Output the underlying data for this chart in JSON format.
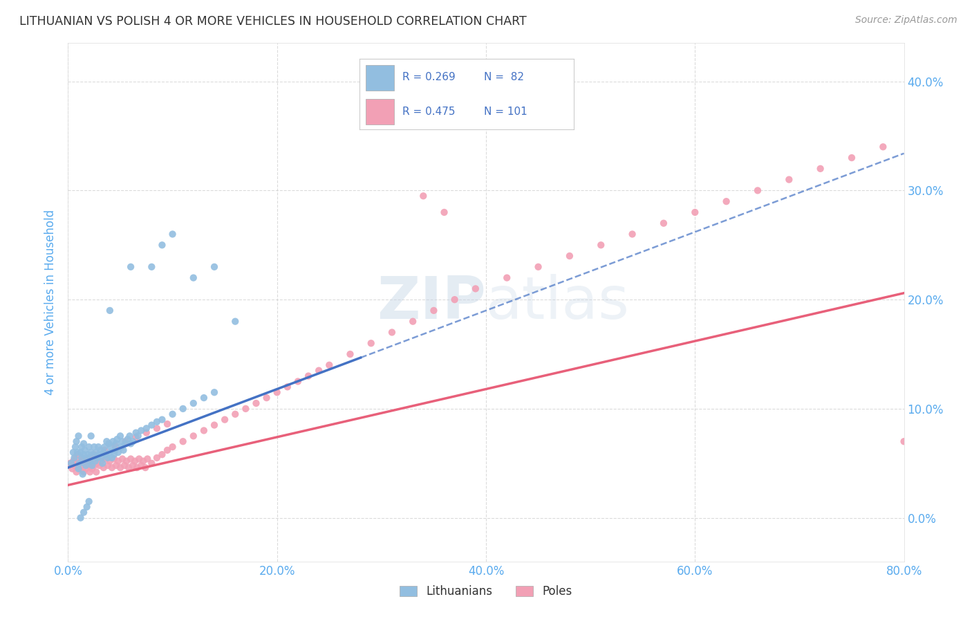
{
  "title": "LITHUANIAN VS POLISH 4 OR MORE VEHICLES IN HOUSEHOLD CORRELATION CHART",
  "source_text": "Source: ZipAtlas.com",
  "ylabel": "4 or more Vehicles in Household",
  "xmin": 0.0,
  "xmax": 0.8,
  "ymin": -0.04,
  "ymax": 0.435,
  "lithuanian_color": "#92BEE0",
  "polish_color": "#F2A0B5",
  "lit_line_color": "#4472C4",
  "pol_line_color": "#E8607A",
  "R_lithuanian": 0.269,
  "N_lithuanian": 82,
  "R_polish": 0.475,
  "N_polish": 101,
  "background_color": "#ffffff",
  "grid_color": "#cccccc",
  "title_color": "#333333",
  "axis_label_color": "#5AABEE",
  "tick_label_color": "#5AABEE",
  "watermark_color": "#c8d8e8",
  "lit_x": [
    0.003,
    0.005,
    0.006,
    0.007,
    0.008,
    0.009,
    0.01,
    0.01,
    0.011,
    0.012,
    0.013,
    0.013,
    0.014,
    0.015,
    0.015,
    0.016,
    0.017,
    0.018,
    0.019,
    0.02,
    0.021,
    0.022,
    0.022,
    0.023,
    0.024,
    0.025,
    0.026,
    0.027,
    0.028,
    0.029,
    0.03,
    0.031,
    0.032,
    0.033,
    0.034,
    0.035,
    0.036,
    0.037,
    0.038,
    0.039,
    0.04,
    0.041,
    0.042,
    0.043,
    0.044,
    0.045,
    0.046,
    0.047,
    0.048,
    0.05,
    0.051,
    0.052,
    0.053,
    0.055,
    0.057,
    0.059,
    0.06,
    0.062,
    0.065,
    0.067,
    0.07,
    0.075,
    0.08,
    0.085,
    0.09,
    0.1,
    0.11,
    0.12,
    0.13,
    0.14,
    0.04,
    0.06,
    0.08,
    0.09,
    0.1,
    0.12,
    0.14,
    0.16,
    0.012,
    0.015,
    0.018,
    0.02
  ],
  "lit_y": [
    0.05,
    0.06,
    0.055,
    0.065,
    0.07,
    0.06,
    0.045,
    0.075,
    0.05,
    0.06,
    0.055,
    0.065,
    0.04,
    0.058,
    0.068,
    0.062,
    0.048,
    0.055,
    0.058,
    0.065,
    0.052,
    0.06,
    0.075,
    0.048,
    0.058,
    0.065,
    0.052,
    0.06,
    0.055,
    0.065,
    0.058,
    0.062,
    0.055,
    0.05,
    0.06,
    0.065,
    0.058,
    0.07,
    0.055,
    0.068,
    0.06,
    0.065,
    0.055,
    0.07,
    0.058,
    0.062,
    0.068,
    0.072,
    0.06,
    0.075,
    0.065,
    0.07,
    0.062,
    0.068,
    0.072,
    0.075,
    0.068,
    0.07,
    0.078,
    0.075,
    0.08,
    0.082,
    0.085,
    0.088,
    0.09,
    0.095,
    0.1,
    0.105,
    0.11,
    0.115,
    0.19,
    0.23,
    0.23,
    0.25,
    0.26,
    0.22,
    0.23,
    0.18,
    0.0,
    0.005,
    0.01,
    0.015
  ],
  "pol_x": [
    0.002,
    0.004,
    0.005,
    0.006,
    0.007,
    0.008,
    0.009,
    0.01,
    0.011,
    0.012,
    0.013,
    0.014,
    0.015,
    0.016,
    0.017,
    0.018,
    0.019,
    0.02,
    0.021,
    0.022,
    0.023,
    0.024,
    0.025,
    0.026,
    0.027,
    0.028,
    0.03,
    0.032,
    0.034,
    0.036,
    0.038,
    0.04,
    0.042,
    0.044,
    0.046,
    0.048,
    0.05,
    0.052,
    0.054,
    0.056,
    0.058,
    0.06,
    0.062,
    0.064,
    0.066,
    0.068,
    0.07,
    0.072,
    0.074,
    0.076,
    0.08,
    0.085,
    0.09,
    0.095,
    0.1,
    0.11,
    0.12,
    0.13,
    0.14,
    0.15,
    0.16,
    0.17,
    0.18,
    0.19,
    0.2,
    0.21,
    0.22,
    0.23,
    0.24,
    0.25,
    0.27,
    0.29,
    0.31,
    0.33,
    0.35,
    0.37,
    0.39,
    0.42,
    0.45,
    0.48,
    0.51,
    0.54,
    0.57,
    0.6,
    0.63,
    0.66,
    0.69,
    0.72,
    0.75,
    0.78,
    0.025,
    0.035,
    0.045,
    0.055,
    0.065,
    0.075,
    0.085,
    0.095,
    0.34,
    0.36,
    0.8
  ],
  "pol_y": [
    0.05,
    0.045,
    0.052,
    0.048,
    0.055,
    0.042,
    0.058,
    0.05,
    0.045,
    0.052,
    0.048,
    0.055,
    0.042,
    0.05,
    0.045,
    0.052,
    0.048,
    0.055,
    0.042,
    0.05,
    0.045,
    0.052,
    0.048,
    0.055,
    0.042,
    0.05,
    0.048,
    0.052,
    0.046,
    0.054,
    0.048,
    0.052,
    0.046,
    0.054,
    0.048,
    0.052,
    0.046,
    0.054,
    0.048,
    0.052,
    0.046,
    0.054,
    0.048,
    0.052,
    0.046,
    0.054,
    0.048,
    0.052,
    0.046,
    0.054,
    0.05,
    0.055,
    0.058,
    0.062,
    0.065,
    0.07,
    0.075,
    0.08,
    0.085,
    0.09,
    0.095,
    0.1,
    0.105,
    0.11,
    0.115,
    0.12,
    0.125,
    0.13,
    0.135,
    0.14,
    0.15,
    0.16,
    0.17,
    0.18,
    0.19,
    0.2,
    0.21,
    0.22,
    0.23,
    0.24,
    0.25,
    0.26,
    0.27,
    0.28,
    0.29,
    0.3,
    0.31,
    0.32,
    0.33,
    0.34,
    0.058,
    0.062,
    0.066,
    0.07,
    0.074,
    0.078,
    0.082,
    0.086,
    0.295,
    0.28,
    0.07
  ]
}
